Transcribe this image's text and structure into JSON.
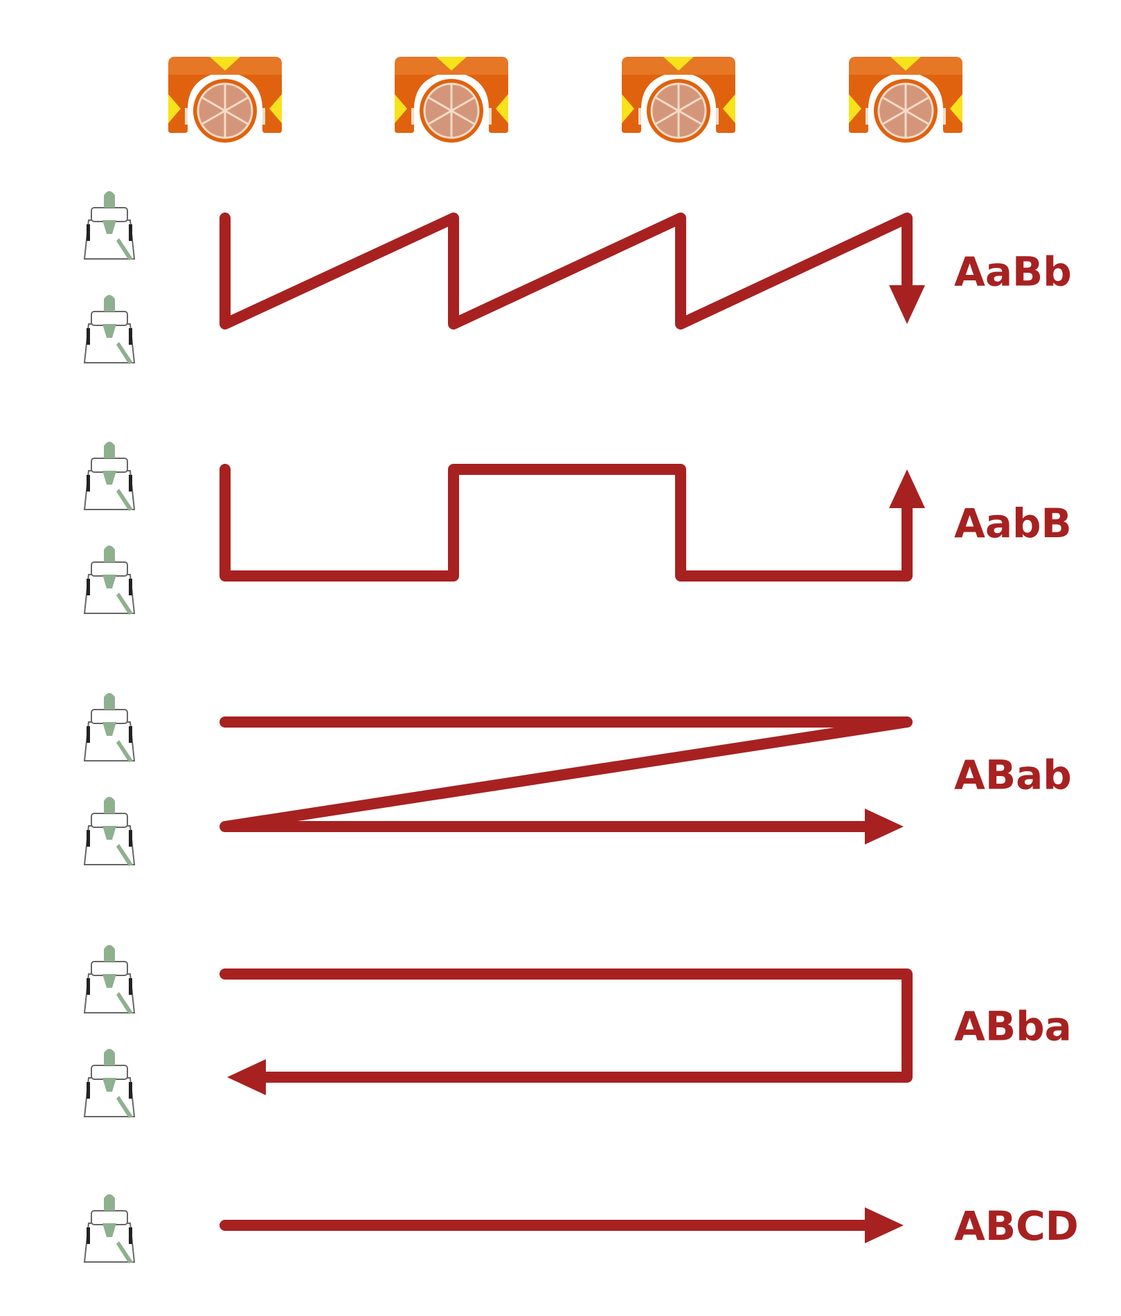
{
  "diagram": {
    "colors": {
      "path": "#a82121",
      "label": "#a82121",
      "prism_body": "#e0620e",
      "prism_highlight": "#f0a050",
      "prism_triangle": "#f7e21b",
      "prism_lens": "#d4967a",
      "prism_lens_lines": "#f4dcc8",
      "instrument_body": "#ffffff",
      "instrument_outline": "#666666",
      "instrument_green": "#8fb08e",
      "instrument_dark": "#222222"
    },
    "prism_count": 4,
    "prism_icon": "prism-target-icon",
    "instrument_icon": "total-station-icon",
    "arrow_icon": "arrow-head-icon",
    "sequences": [
      {
        "label": "AaBb",
        "instrument_count": 2,
        "pattern": "sawtooth",
        "arrow_direction": "down"
      },
      {
        "label": "AabB",
        "instrument_count": 2,
        "pattern": "square-wave",
        "arrow_direction": "up"
      },
      {
        "label": "ABab",
        "instrument_count": 2,
        "pattern": "z-shape",
        "arrow_direction": "right"
      },
      {
        "label": "ABba",
        "instrument_count": 2,
        "pattern": "u-turn",
        "arrow_direction": "left"
      },
      {
        "label": "ABCD",
        "instrument_count": 1,
        "pattern": "straight",
        "arrow_direction": "right"
      }
    ]
  }
}
